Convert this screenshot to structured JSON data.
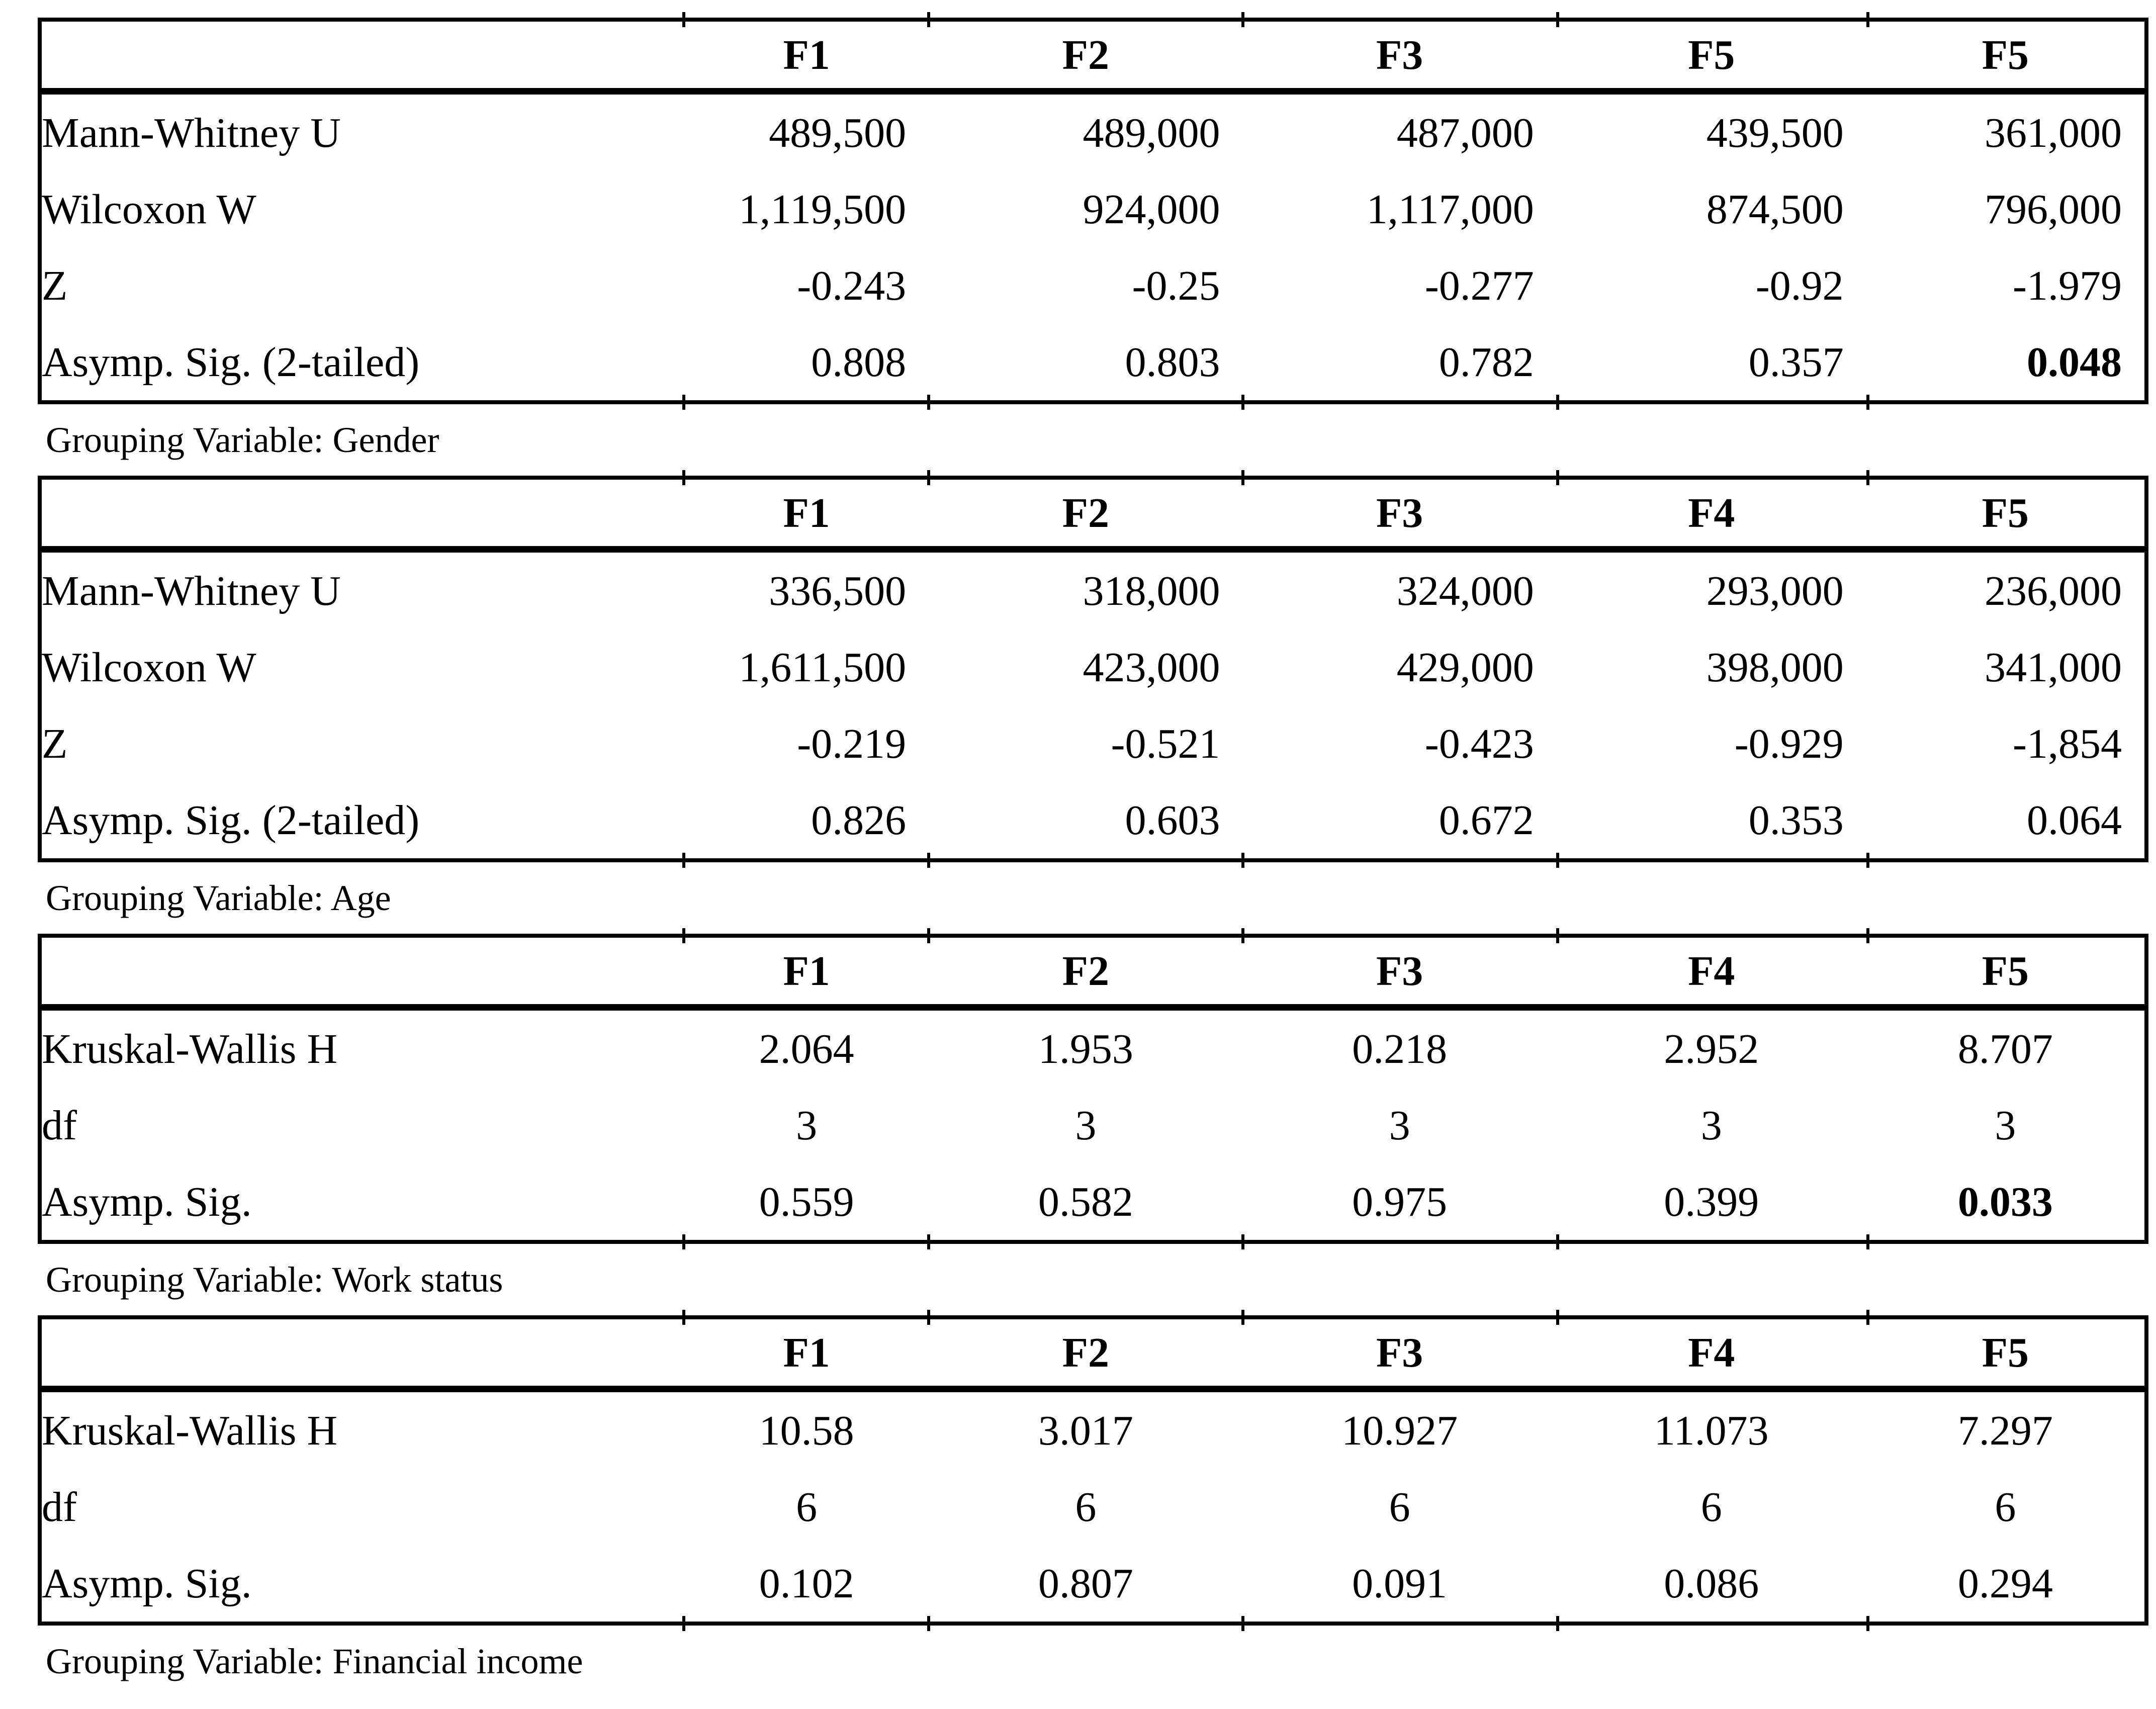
{
  "page": {
    "background_color": "#ffffff",
    "text_color": "#000000"
  },
  "tables": [
    {
      "columns": [
        "",
        "F1",
        "F2",
        "F3",
        "F5",
        "F5"
      ],
      "value_alignment": "right",
      "rows": [
        {
          "label": "Mann-Whitney U",
          "values": [
            "489,500",
            "489,000",
            "487,000",
            "439,500",
            "361,000"
          ]
        },
        {
          "label": "Wilcoxon W",
          "values": [
            "1,119,500",
            "924,000",
            "1,117,000",
            "874,500",
            "796,000"
          ]
        },
        {
          "label": "Z",
          "values": [
            "-0.243",
            "-0.25",
            "-0.277",
            "-0.92",
            "-1.979"
          ]
        },
        {
          "label": "Asymp. Sig. (2-tailed)",
          "values": [
            "0.808",
            "0.803",
            "0.782",
            "0.357",
            "0.048"
          ],
          "bold_value_indexes": [
            4
          ]
        }
      ],
      "caption": "Grouping Variable: Gender"
    },
    {
      "columns": [
        "",
        "F1",
        "F2",
        "F3",
        "F4",
        "F5"
      ],
      "value_alignment": "right",
      "rows": [
        {
          "label": "Mann-Whitney U",
          "values": [
            "336,500",
            "318,000",
            "324,000",
            "293,000",
            "236,000"
          ]
        },
        {
          "label": "Wilcoxon W",
          "values": [
            "1,611,500",
            "423,000",
            "429,000",
            "398,000",
            "341,000"
          ]
        },
        {
          "label": "Z",
          "values": [
            "-0.219",
            "-0.521",
            "-0.423",
            "-0.929",
            "-1,854"
          ]
        },
        {
          "label": "Asymp. Sig. (2-tailed)",
          "values": [
            "0.826",
            "0.603",
            "0.672",
            "0.353",
            "0.064"
          ]
        }
      ],
      "caption": "Grouping Variable: Age"
    },
    {
      "columns": [
        "",
        "F1",
        "F2",
        "F3",
        "F4",
        "F5"
      ],
      "value_alignment": "center",
      "rows": [
        {
          "label": "Kruskal-Wallis H",
          "values": [
            "2.064",
            "1.953",
            "0.218",
            "2.952",
            "8.707"
          ]
        },
        {
          "label": "df",
          "values": [
            "3",
            "3",
            "3",
            "3",
            "3"
          ]
        },
        {
          "label": "Asymp. Sig.",
          "values": [
            "0.559",
            "0.582",
            "0.975",
            "0.399",
            "0.033"
          ],
          "bold_value_indexes": [
            4
          ]
        }
      ],
      "caption": "Grouping Variable: Work status"
    },
    {
      "columns": [
        "",
        "F1",
        "F2",
        "F3",
        "F4",
        "F5"
      ],
      "value_alignment": "center",
      "rows": [
        {
          "label": "Kruskal-Wallis H",
          "values": [
            "10.58",
            "3.017",
            "10.927",
            "11.073",
            "7.297"
          ]
        },
        {
          "label": "df",
          "values": [
            "6",
            "6",
            "6",
            "6",
            "6"
          ]
        },
        {
          "label": "Asymp. Sig.",
          "values": [
            "0.102",
            "0.807",
            "0.091",
            "0.086",
            "0.294"
          ]
        }
      ],
      "caption": "Grouping Variable: Financial income"
    }
  ]
}
